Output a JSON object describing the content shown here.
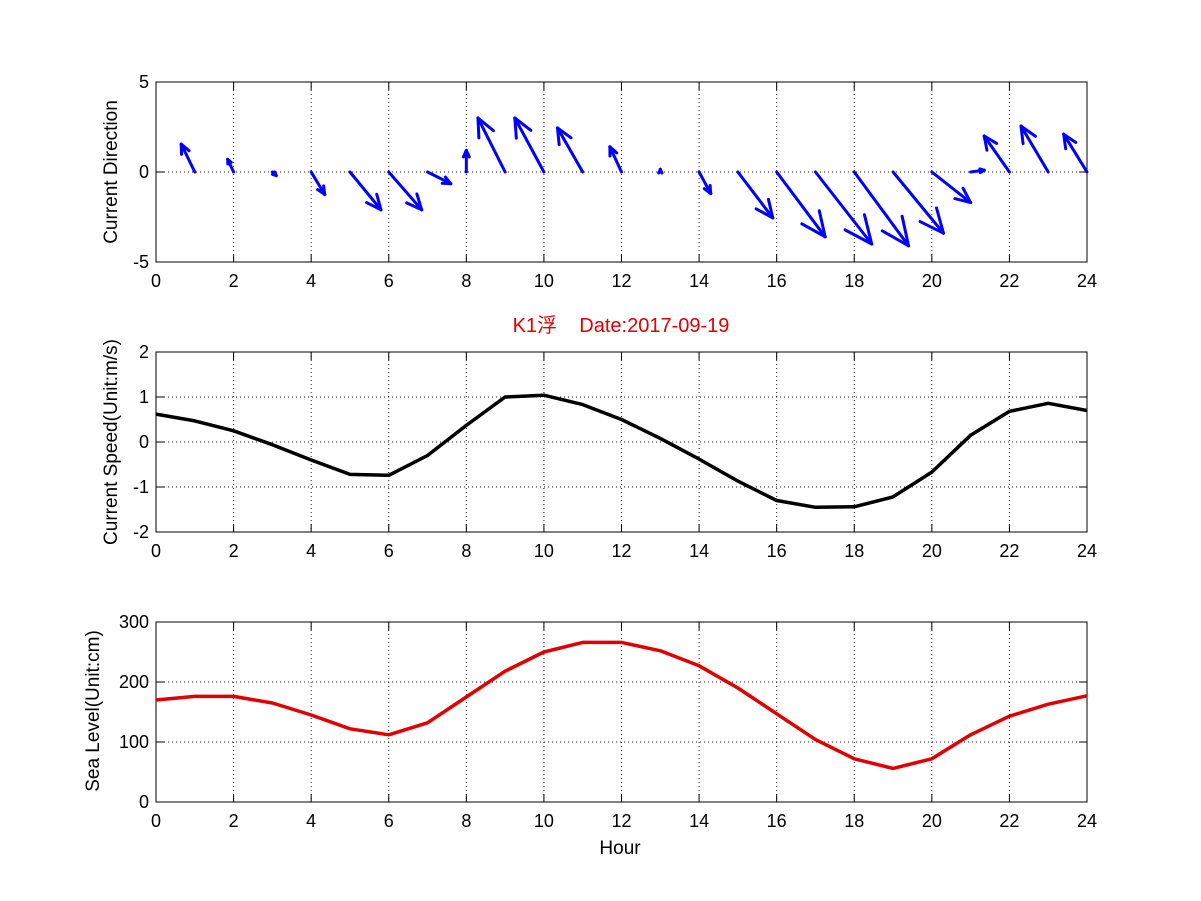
{
  "chart_data": [
    {
      "type": "quiver",
      "ylabel": "Current Direction",
      "xlim": [
        0,
        24
      ],
      "ylim": [
        -5,
        5
      ],
      "xticks": [
        "0",
        "2",
        "4",
        "6",
        "8",
        "10",
        "12",
        "14",
        "16",
        "18",
        "20",
        "22",
        "24"
      ],
      "yticks": [
        "-5",
        "0",
        "5"
      ],
      "grid": true,
      "color": "#0000ff",
      "vectors": [
        {
          "x": 1,
          "u": -0.35,
          "v": 1.55
        },
        {
          "x": 2,
          "u": -0.15,
          "v": 0.7
        },
        {
          "x": 3,
          "u": 0.1,
          "v": -0.2
        },
        {
          "x": 4,
          "u": 0.35,
          "v": -1.25
        },
        {
          "x": 5,
          "u": 0.8,
          "v": -2.1
        },
        {
          "x": 6,
          "u": 0.85,
          "v": -2.1
        },
        {
          "x": 7,
          "u": 0.6,
          "v": -0.65
        },
        {
          "x": 8,
          "u": 0.0,
          "v": 1.2
        },
        {
          "x": 9,
          "u": -0.7,
          "v": 3.0
        },
        {
          "x": 10,
          "u": -0.75,
          "v": 3.0
        },
        {
          "x": 11,
          "u": -0.65,
          "v": 2.45
        },
        {
          "x": 12,
          "u": -0.3,
          "v": 1.4
        },
        {
          "x": 13,
          "u": 0.0,
          "v": 0.15
        },
        {
          "x": 14,
          "u": 0.3,
          "v": -1.2
        },
        {
          "x": 15,
          "u": 0.9,
          "v": -2.55
        },
        {
          "x": 16,
          "u": 1.25,
          "v": -3.6
        },
        {
          "x": 17,
          "u": 1.45,
          "v": -4.0
        },
        {
          "x": 18,
          "u": 1.4,
          "v": -4.1
        },
        {
          "x": 19,
          "u": 1.3,
          "v": -3.4
        },
        {
          "x": 20,
          "u": 1.0,
          "v": -1.7
        },
        {
          "x": 21,
          "u": 0.35,
          "v": 0.1
        },
        {
          "x": 22,
          "u": -0.65,
          "v": 2.0
        },
        {
          "x": 23,
          "u": -0.7,
          "v": 2.55
        },
        {
          "x": 24,
          "u": -0.6,
          "v": 2.1
        }
      ]
    },
    {
      "type": "line",
      "title": "K1浮    Date:2017-09-19",
      "ylabel": "Current Speed(Unit:m/s)",
      "xlim": [
        0,
        24
      ],
      "ylim": [
        -2,
        2
      ],
      "xticks": [
        "0",
        "2",
        "4",
        "6",
        "8",
        "10",
        "12",
        "14",
        "16",
        "18",
        "20",
        "22",
        "24"
      ],
      "yticks": [
        "-2",
        "-1",
        "0",
        "1",
        "2"
      ],
      "grid": true,
      "color": "#000000",
      "x": [
        0,
        1,
        2,
        3,
        4,
        5,
        6,
        7,
        8,
        9,
        10,
        11,
        12,
        13,
        14,
        15,
        16,
        17,
        18,
        19,
        20,
        21,
        22,
        23,
        24
      ],
      "y": [
        0.62,
        0.47,
        0.25,
        -0.06,
        -0.4,
        -0.72,
        -0.74,
        -0.3,
        0.37,
        1.0,
        1.04,
        0.83,
        0.5,
        0.08,
        -0.38,
        -0.87,
        -1.3,
        -1.45,
        -1.44,
        -1.22,
        -0.67,
        0.15,
        0.68,
        0.86,
        0.7
      ]
    },
    {
      "type": "line",
      "xlabel": "Hour",
      "ylabel": "Sea Level(Unit:cm)",
      "xlim": [
        0,
        24
      ],
      "ylim": [
        0,
        300
      ],
      "xticks": [
        "0",
        "2",
        "4",
        "6",
        "8",
        "10",
        "12",
        "14",
        "16",
        "18",
        "20",
        "22",
        "24"
      ],
      "yticks": [
        "0",
        "100",
        "200",
        "300"
      ],
      "grid": true,
      "color": "#e00000",
      "x": [
        0,
        1,
        2,
        3,
        4,
        5,
        6,
        7,
        8,
        9,
        10,
        11,
        12,
        13,
        14,
        15,
        16,
        17,
        18,
        19,
        20,
        21,
        22,
        23,
        24
      ],
      "y": [
        170,
        176,
        176,
        165,
        145,
        122,
        112,
        132,
        175,
        218,
        250,
        266,
        266,
        252,
        227,
        190,
        147,
        104,
        72,
        56,
        72,
        112,
        143,
        163,
        177
      ]
    }
  ]
}
